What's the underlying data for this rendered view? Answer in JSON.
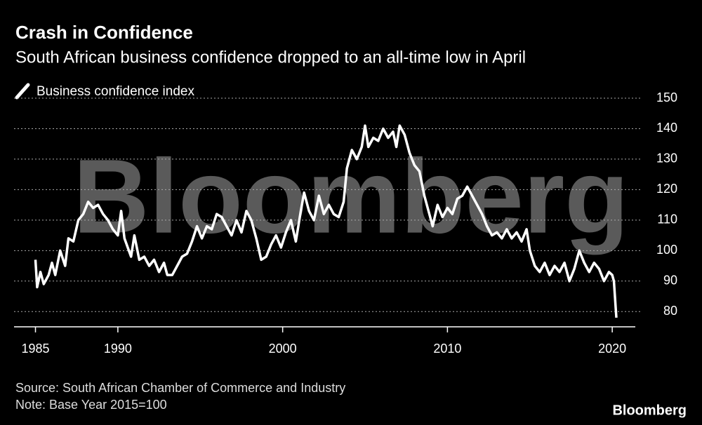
{
  "chart_data": {
    "type": "line",
    "title": "Crash in Confidence",
    "subtitle": "South African business confidence dropped to an all-time low in April",
    "watermark": "Bloomberg",
    "source": "Source: South African Chamber of Commerce and Industry",
    "note": "Note: Base Year 2015=100",
    "logo": "Bloomberg",
    "legend": "top-left",
    "grid": true,
    "x": [
      1985.0,
      1985.1,
      1985.3,
      1985.5,
      1985.8,
      1986.0,
      1986.2,
      1986.5,
      1986.8,
      1987.0,
      1987.3,
      1987.6,
      1987.9,
      1988.2,
      1988.5,
      1988.8,
      1989.1,
      1989.4,
      1989.7,
      1990.0,
      1990.2,
      1990.4,
      1990.6,
      1990.8,
      1991.0,
      1991.3,
      1991.6,
      1991.9,
      1992.2,
      1992.5,
      1992.8,
      1993.0,
      1993.3,
      1993.6,
      1993.9,
      1994.2,
      1994.5,
      1994.8,
      1995.1,
      1995.4,
      1995.7,
      1996.0,
      1996.3,
      1996.6,
      1996.9,
      1997.2,
      1997.5,
      1997.8,
      1998.1,
      1998.4,
      1998.7,
      1999.0,
      1999.3,
      1999.6,
      1999.9,
      2000.2,
      2000.5,
      2000.8,
      2001.1,
      2001.3,
      2001.6,
      2001.9,
      2002.2,
      2002.5,
      2002.8,
      2003.1,
      2003.4,
      2003.7,
      2003.9,
      2004.2,
      2004.5,
      2004.8,
      2005.0,
      2005.2,
      2005.5,
      2005.8,
      2006.1,
      2006.4,
      2006.7,
      2006.9,
      2007.1,
      2007.4,
      2007.7,
      2008.0,
      2008.3,
      2008.6,
      2008.9,
      2009.1,
      2009.4,
      2009.7,
      2010.0,
      2010.3,
      2010.6,
      2010.9,
      2011.2,
      2011.5,
      2011.8,
      2012.1,
      2012.4,
      2012.7,
      2013.0,
      2013.3,
      2013.6,
      2013.9,
      2014.2,
      2014.5,
      2014.8,
      2015.0,
      2015.3,
      2015.6,
      2015.9,
      2016.2,
      2016.5,
      2016.8,
      2017.1,
      2017.4,
      2017.7,
      2018.0,
      2018.3,
      2018.6,
      2018.9,
      2019.2,
      2019.5,
      2019.8,
      2020.0,
      2020.1,
      2020.25
    ],
    "series": [
      {
        "name": "Business confidence index",
        "color": "#ffffff",
        "values": [
          97,
          88,
          93,
          89,
          92,
          96,
          92,
          100,
          95,
          104,
          103,
          110,
          112,
          116,
          114,
          115,
          112,
          110,
          107,
          105,
          113,
          104,
          101,
          98,
          105,
          97,
          98,
          95,
          97,
          93,
          96,
          92,
          92,
          95,
          98,
          99,
          103,
          108,
          104,
          108,
          107,
          112,
          111,
          108,
          105,
          110,
          106,
          113,
          110,
          104,
          97,
          98,
          102,
          105,
          101,
          106,
          110,
          103,
          113,
          119,
          113,
          110,
          118,
          112,
          115,
          112,
          111,
          116,
          127,
          133,
          130,
          134,
          141,
          134,
          137,
          136,
          140,
          137,
          139,
          134,
          141,
          138,
          132,
          128,
          126,
          118,
          112,
          108,
          115,
          111,
          114,
          112,
          117,
          118,
          121,
          118,
          115,
          112,
          108,
          105,
          106,
          104,
          107,
          104,
          106,
          103,
          107,
          100,
          95,
          93,
          96,
          92,
          95,
          93,
          96,
          90,
          94,
          100,
          96,
          93,
          96,
          94,
          90,
          93,
          92,
          90,
          78
        ]
      }
    ],
    "xlim": [
      1983.7,
      2021.4
    ],
    "xticks": [
      1985,
      1990,
      2000,
      2010,
      2020
    ],
    "ylim": [
      75,
      150
    ],
    "yticks": [
      80,
      90,
      100,
      110,
      120,
      130,
      140,
      150
    ]
  }
}
